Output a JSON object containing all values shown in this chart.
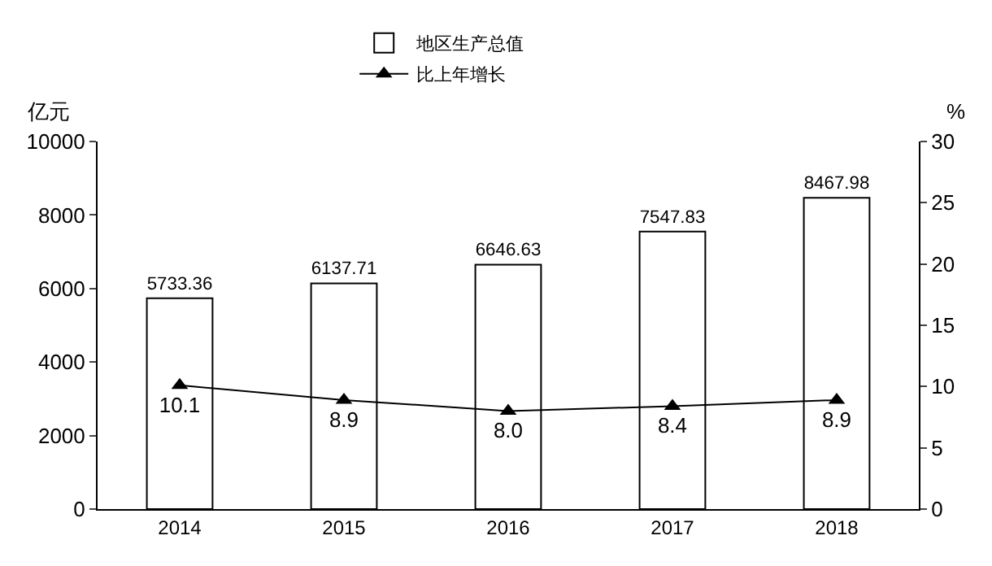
{
  "chart_data": {
    "type": "bar",
    "categories": [
      "2014",
      "2015",
      "2016",
      "2017",
      "2018"
    ],
    "series": [
      {
        "name": "地区生产总值",
        "color": "#ffffff",
        "values": [
          5733.36,
          6137.71,
          6646.63,
          7547.83,
          8467.98
        ]
      },
      {
        "name": "比上年增长",
        "type": "line",
        "axis": "y2",
        "color": "#000000",
        "values": [
          10.1,
          8.9,
          8.0,
          8.4,
          8.9
        ],
        "value_labels": [
          "10.1",
          "8.9",
          "8.0",
          "8.4",
          "8.9"
        ]
      }
    ],
    "ylabel": "亿元",
    "y2label": "%",
    "ylim": [
      0,
      10000
    ],
    "yticks": [
      0,
      2000,
      4000,
      6000,
      8000,
      10000
    ],
    "y2lim": [
      0,
      30
    ],
    "y2ticks": [
      0,
      5,
      10,
      15,
      20,
      25,
      30
    ],
    "data_labels": true,
    "legend": "top",
    "marker": "triangle",
    "line_style": "solid",
    "grid": false
  }
}
